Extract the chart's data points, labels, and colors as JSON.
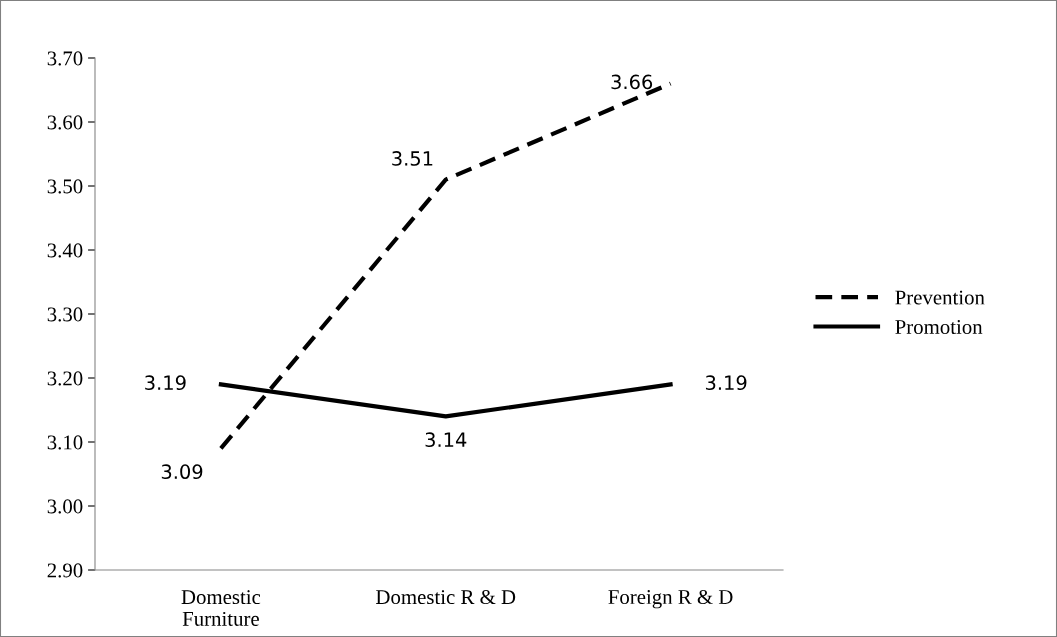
{
  "chart_data": {
    "type": "line",
    "categories": [
      "Domestic\nFurniture",
      "Domestic R & D",
      "Foreign R & D"
    ],
    "series": [
      {
        "name": "Prevention",
        "color": "#000000",
        "line_style": "dashed",
        "values": [
          3.09,
          3.51,
          3.66
        ]
      },
      {
        "name": "Promotion",
        "color": "#000000",
        "line_style": "solid",
        "values": [
          3.19,
          3.14,
          3.19
        ]
      }
    ],
    "ylim": [
      2.9,
      3.7
    ],
    "yticks": [
      {
        "value": 2.9,
        "label": "2.90"
      },
      {
        "value": 3.0,
        "label": "3.00"
      },
      {
        "value": 3.1,
        "label": "3.10"
      },
      {
        "value": 3.2,
        "label": "3.20"
      },
      {
        "value": 3.3,
        "label": "3.30"
      },
      {
        "value": 3.4,
        "label": "3.40"
      },
      {
        "value": 3.5,
        "label": "3.50"
      },
      {
        "value": 3.6,
        "label": "3.60"
      },
      {
        "value": 3.7,
        "label": "3.70"
      }
    ],
    "data_labels": true,
    "grid": false,
    "legend": "right",
    "marker": "none"
  }
}
